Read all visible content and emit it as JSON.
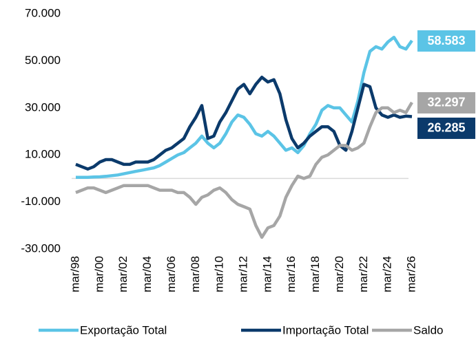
{
  "chart_data": {
    "type": "line",
    "categories": [
      "mar/98",
      null,
      null,
      null,
      "mar/00",
      null,
      null,
      null,
      "mar/02",
      null,
      null,
      null,
      "mar/04",
      null,
      null,
      null,
      "mar/06",
      null,
      null,
      null,
      "mar/08",
      null,
      null,
      null,
      "mar/10",
      null,
      null,
      null,
      "mar/12",
      null,
      null,
      null,
      "mar/14",
      null,
      null,
      null,
      "mar/16",
      null,
      null,
      null,
      "mar/18",
      null,
      null,
      null,
      "mar/20",
      null,
      null,
      null,
      "mar/22",
      null,
      null,
      null,
      "mar/24",
      null,
      null,
      null,
      "mar/26"
    ],
    "ylim": [
      -30000,
      70000
    ],
    "yticks": [
      {
        "value": -30000,
        "label": "-30.000"
      },
      {
        "value": -10000,
        "label": "-10.000"
      },
      {
        "value": 10000,
        "label": "10.000"
      },
      {
        "value": 30000,
        "label": "30.000"
      },
      {
        "value": 50000,
        "label": "50.000"
      },
      {
        "value": 70000,
        "label": "70.000"
      }
    ],
    "series": [
      {
        "name": "Exportação Total",
        "color": "#5bc4e6",
        "values": [
          500,
          500,
          500,
          600,
          700,
          900,
          1200,
          1500,
          2000,
          2500,
          3000,
          3500,
          4000,
          4500,
          5500,
          7000,
          8500,
          10000,
          11000,
          13000,
          15000,
          18000,
          15000,
          13000,
          15000,
          19000,
          24000,
          27000,
          26000,
          23000,
          19000,
          18000,
          20000,
          18000,
          15000,
          12000,
          13000,
          11000,
          14000,
          19000,
          23000,
          29000,
          31000,
          30000,
          30000,
          27000,
          24000,
          33000,
          45000,
          54000,
          56000,
          55000,
          58000,
          60000,
          56000,
          55000,
          58583
        ],
        "value_labels": [
          null,
          null,
          null,
          null,
          null,
          null,
          null,
          null,
          null,
          null,
          null,
          null,
          null,
          null,
          null,
          null,
          null,
          null,
          null,
          null,
          null,
          null,
          null,
          null,
          null,
          null,
          null,
          null,
          null,
          null,
          null,
          null,
          null,
          null,
          null,
          null,
          null,
          null,
          null,
          null,
          null,
          null,
          null,
          null,
          null,
          null,
          null,
          null,
          null,
          null,
          null,
          null,
          null,
          null,
          null,
          null,
          "58.583"
        ]
      },
      {
        "name": "Importação Total",
        "color": "#0b3a6b",
        "values": [
          6000,
          5000,
          4000,
          5000,
          7000,
          8000,
          8000,
          7000,
          6000,
          6000,
          7000,
          7000,
          7000,
          8000,
          10000,
          12000,
          13000,
          15000,
          17000,
          22000,
          26000,
          31000,
          17000,
          18000,
          24000,
          28000,
          33000,
          38000,
          40000,
          36000,
          40000,
          43000,
          41000,
          42000,
          36000,
          25000,
          17000,
          13000,
          15000,
          18000,
          20000,
          22000,
          22000,
          20000,
          14000,
          12000,
          20000,
          30000,
          40000,
          39000,
          30000,
          27000,
          26000,
          27000,
          26000,
          26500,
          26285
        ],
        "value_labels": [
          null,
          null,
          null,
          null,
          null,
          null,
          null,
          null,
          null,
          null,
          null,
          null,
          null,
          null,
          null,
          null,
          null,
          null,
          null,
          null,
          null,
          null,
          null,
          null,
          null,
          null,
          null,
          null,
          null,
          null,
          null,
          null,
          null,
          null,
          null,
          null,
          null,
          null,
          null,
          null,
          null,
          null,
          null,
          null,
          null,
          null,
          null,
          null,
          null,
          null,
          null,
          null,
          null,
          null,
          null,
          null,
          "26.285"
        ]
      },
      {
        "name": "Saldo",
        "color": "#a6a6a6",
        "values": [
          -6000,
          -5000,
          -4000,
          -4000,
          -5000,
          -6000,
          -5000,
          -4000,
          -3000,
          -3000,
          -3000,
          -3000,
          -3000,
          -4000,
          -5000,
          -5000,
          -5000,
          -6000,
          -6000,
          -8000,
          -11000,
          -8000,
          -7000,
          -5000,
          -4000,
          -6000,
          -9000,
          -11000,
          -12000,
          -13000,
          -20000,
          -25000,
          -21000,
          -20000,
          -16000,
          -8000,
          -3000,
          1000,
          0,
          1000,
          6000,
          9000,
          10000,
          12000,
          14000,
          14000,
          12000,
          13000,
          15000,
          22000,
          28000,
          30000,
          30000,
          28000,
          29000,
          28000,
          32297
        ],
        "value_labels": [
          null,
          null,
          null,
          null,
          null,
          null,
          null,
          null,
          null,
          null,
          null,
          null,
          null,
          null,
          null,
          null,
          null,
          null,
          null,
          null,
          null,
          null,
          null,
          null,
          null,
          null,
          null,
          null,
          null,
          null,
          null,
          null,
          null,
          null,
          null,
          null,
          null,
          null,
          null,
          null,
          null,
          null,
          null,
          null,
          null,
          null,
          null,
          null,
          null,
          null,
          null,
          null,
          null,
          null,
          null,
          null,
          "32.297"
        ]
      }
    ]
  }
}
